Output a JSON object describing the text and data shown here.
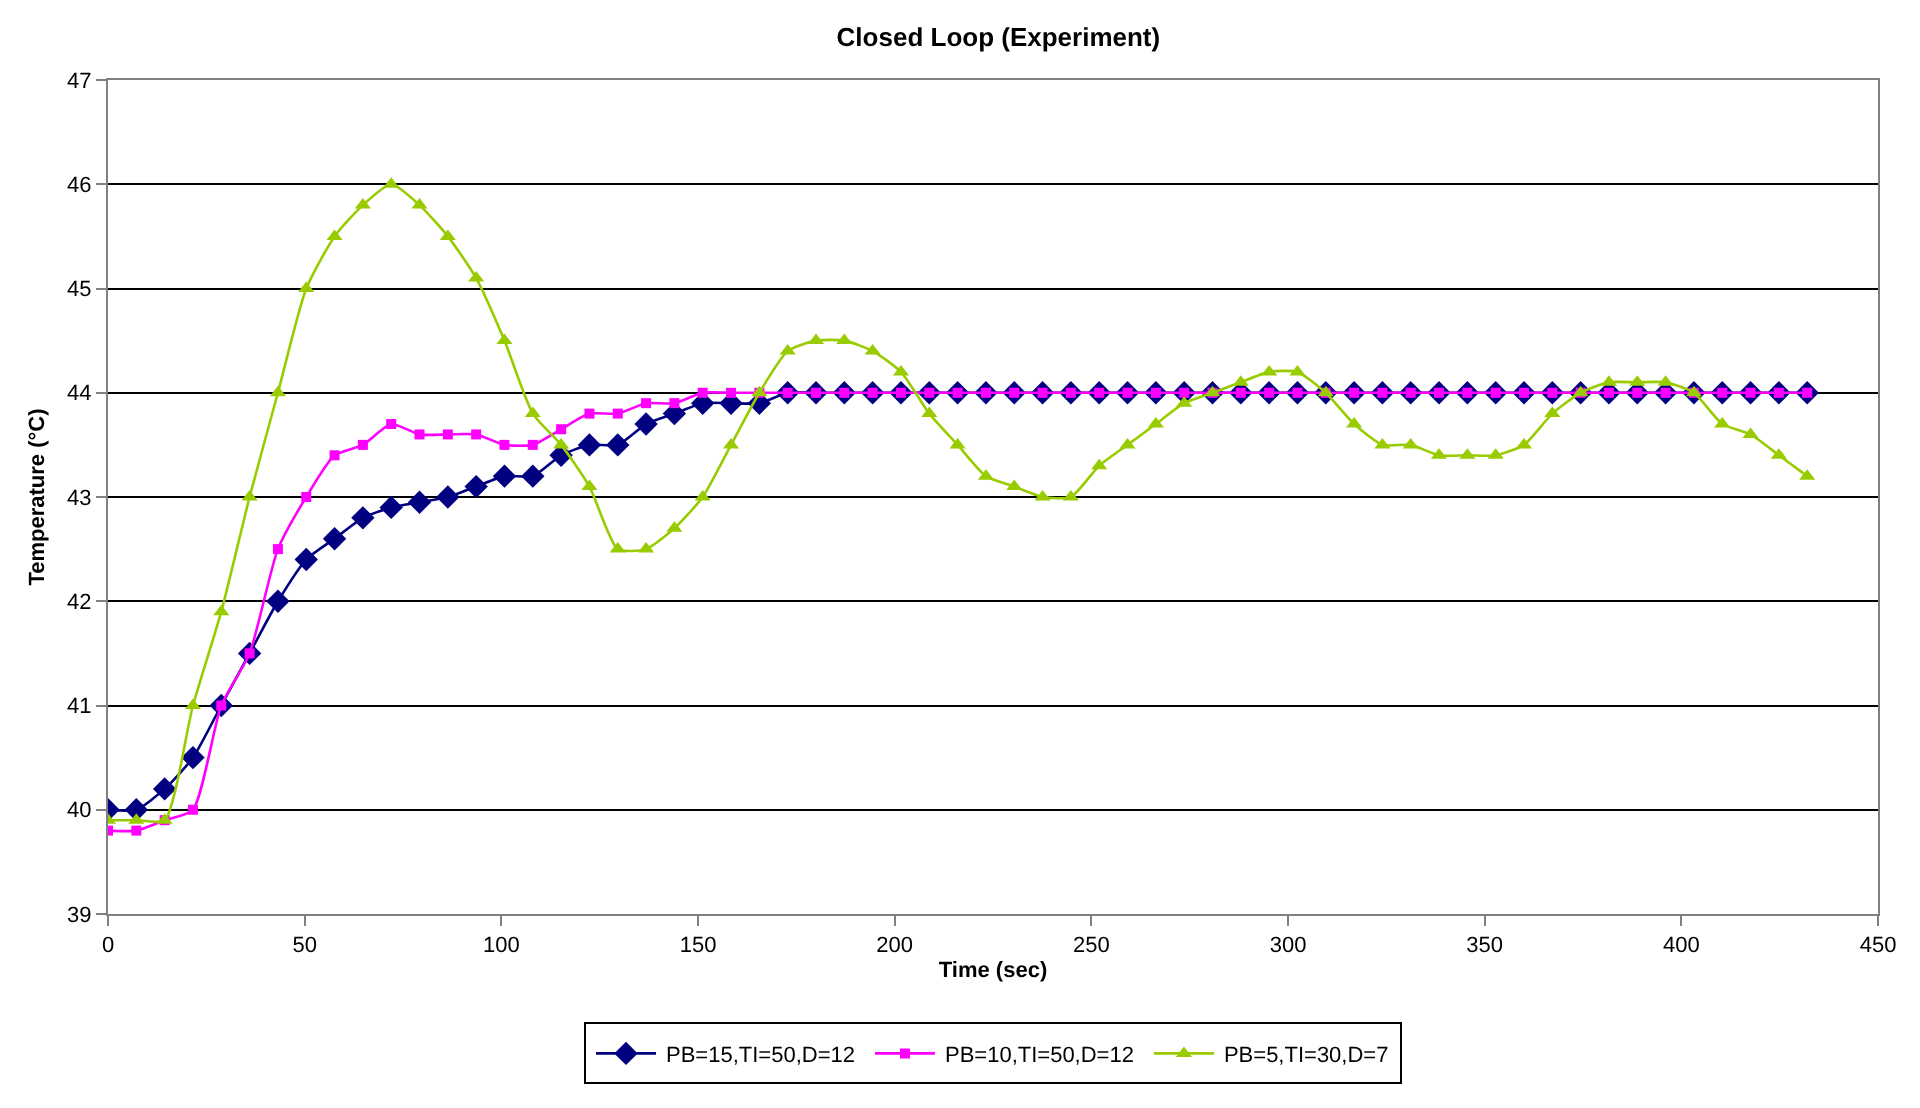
{
  "chart_data": {
    "type": "line",
    "title": "Closed Loop (Experiment)",
    "xlabel": "Time (sec)",
    "ylabel": "Temperature (°C)",
    "x": [
      0,
      7.2,
      14.4,
      21.6,
      28.8,
      36,
      43.2,
      50.4,
      57.6,
      64.8,
      72,
      79.2,
      86.4,
      93.6,
      100.8,
      108,
      115.2,
      122.4,
      129.6,
      136.8,
      144,
      151.2,
      158.4,
      165.6,
      172.8,
      180,
      187.2,
      194.4,
      201.6,
      208.8,
      216,
      223.2,
      230.4,
      237.6,
      244.8,
      252,
      259.2,
      266.4,
      273.6,
      280.8,
      288,
      295.2,
      302.4,
      309.6,
      316.8,
      324,
      331.2,
      338.4,
      345.6,
      352.8,
      360,
      367.2,
      374.4,
      381.6,
      388.8,
      396,
      403.2,
      410.4,
      417.6,
      424.8,
      432
    ],
    "series": [
      {
        "name": "PB=15,TI=50,D=12",
        "color": "#000080",
        "marker": "diamond",
        "values": [
          40,
          40,
          40.2,
          40.5,
          41,
          41.5,
          42,
          42.4,
          42.6,
          42.8,
          42.9,
          42.95,
          43,
          43.1,
          43.2,
          43.2,
          43.4,
          43.5,
          43.5,
          43.7,
          43.8,
          43.9,
          43.9,
          43.9,
          44,
          44,
          44,
          44,
          44,
          44,
          44,
          44,
          44,
          44,
          44,
          44,
          44,
          44,
          44,
          44,
          44,
          44,
          44,
          44,
          44,
          44,
          44,
          44,
          44,
          44,
          44,
          44,
          44,
          44,
          44,
          44,
          44,
          44,
          44,
          44,
          44
        ]
      },
      {
        "name": "PB=10,TI=50,D=12",
        "color": "#ff00ff",
        "marker": "square",
        "values": [
          39.8,
          39.8,
          39.9,
          40.0,
          41.0,
          41.5,
          42.5,
          43.0,
          43.4,
          43.5,
          43.7,
          43.6,
          43.6,
          43.6,
          43.5,
          43.5,
          43.65,
          43.8,
          43.8,
          43.9,
          43.9,
          44,
          44,
          44,
          44,
          44,
          44,
          44,
          44,
          44,
          44,
          44,
          44,
          44,
          44,
          44,
          44,
          44,
          44,
          44,
          44,
          44,
          44,
          44,
          44,
          44,
          44,
          44,
          44,
          44,
          44,
          44,
          44,
          44,
          44,
          44,
          44,
          44,
          44,
          44,
          44
        ]
      },
      {
        "name": "PB=5,TI=30,D=7",
        "color": "#99cc00",
        "marker": "triangle",
        "values": [
          39.9,
          39.9,
          39.9,
          41.0,
          41.9,
          43.0,
          44.0,
          45.0,
          45.5,
          45.8,
          46.0,
          45.8,
          45.5,
          45.1,
          44.5,
          43.8,
          43.5,
          43.1,
          42.5,
          42.5,
          42.7,
          43.0,
          43.5,
          44.0,
          44.4,
          44.5,
          44.5,
          44.4,
          44.2,
          43.8,
          43.5,
          43.2,
          43.1,
          43.0,
          43.0,
          43.3,
          43.5,
          43.7,
          43.9,
          44.0,
          44.1,
          44.2,
          44.2,
          44.0,
          43.7,
          43.5,
          43.5,
          43.4,
          43.4,
          43.4,
          43.5,
          43.8,
          44.0,
          44.1,
          44.1,
          44.1,
          44.0,
          43.7,
          43.6,
          43.4,
          43.2
        ]
      }
    ],
    "xlim": [
      0,
      450
    ],
    "xticks": [
      0,
      50,
      100,
      150,
      200,
      250,
      300,
      350,
      400,
      450
    ],
    "ylim": [
      39,
      47
    ],
    "yticks": [
      39,
      40,
      41,
      42,
      43,
      44,
      45,
      46,
      47
    ],
    "grid": "y",
    "legend": "bottom",
    "line_style": "solid"
  }
}
